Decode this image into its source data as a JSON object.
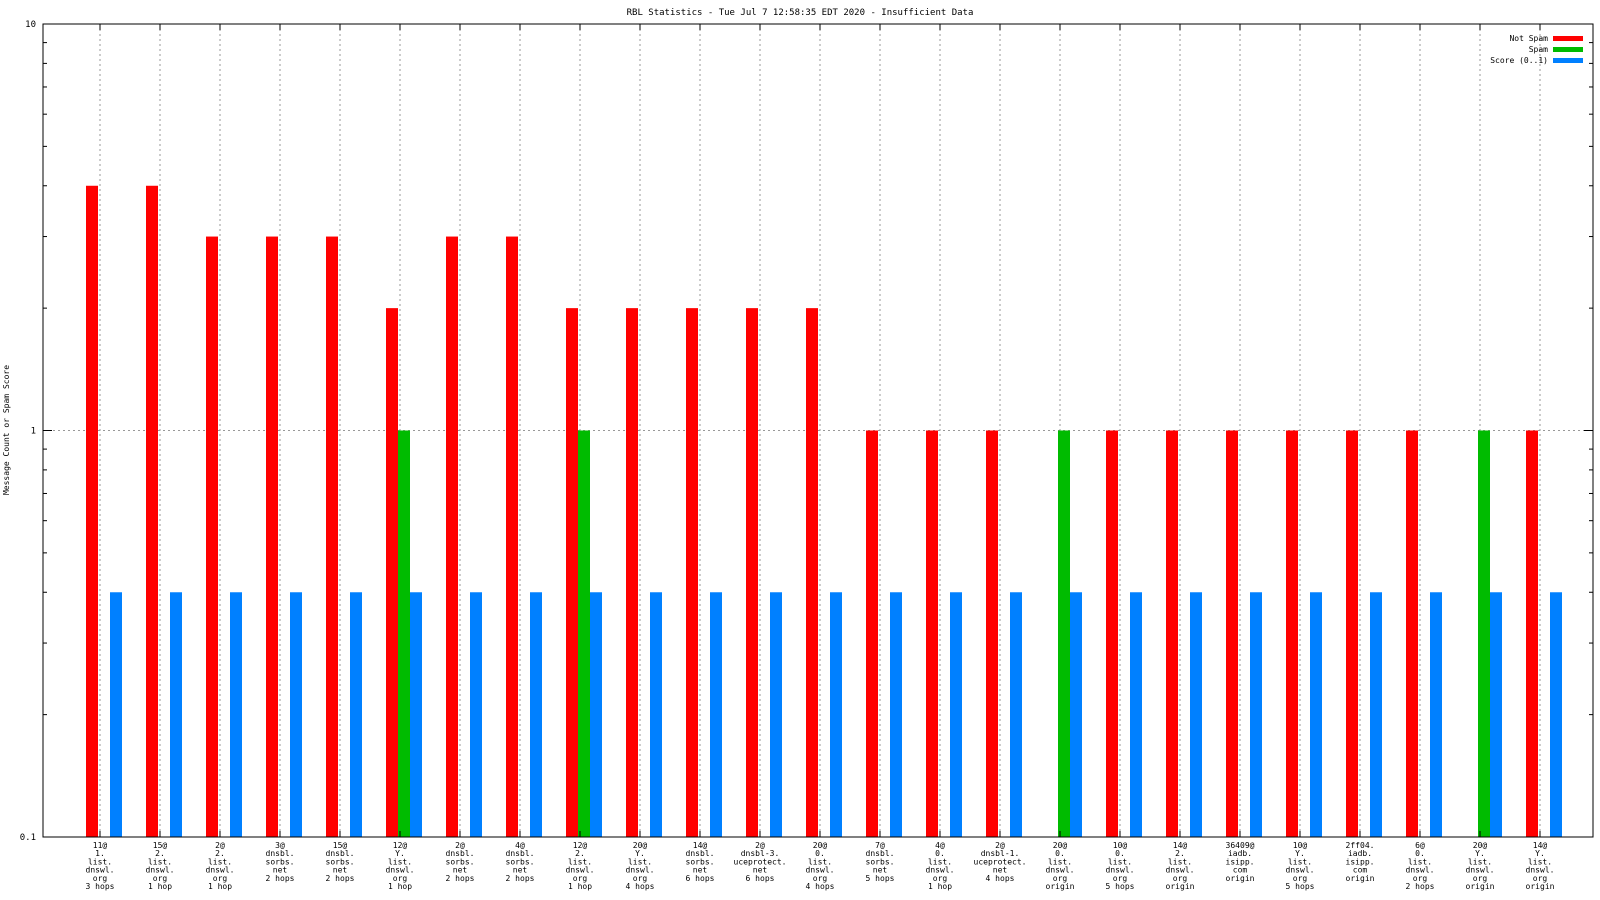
{
  "chart_data": {
    "type": "bar",
    "title": "RBL Statistics - Tue Jul  7 12:58:35 EDT 2020 - Insufficient Data",
    "xlabel": "",
    "ylabel": "Message Count or Spam Score",
    "yscale": "log",
    "ylim": [
      0.1,
      10
    ],
    "yticks": [
      "10",
      "1",
      "0.1"
    ],
    "grid": true,
    "legend_position": "top-right",
    "categories": [
      [
        "11@",
        "1.",
        "list.",
        "dnswl.",
        "org",
        "3 hops"
      ],
      [
        "15@",
        "2.",
        "list.",
        "dnswl.",
        "org",
        "1 hop"
      ],
      [
        "2@",
        "2.",
        "list.",
        "dnswl.",
        "org",
        "1 hop"
      ],
      [
        "3@",
        "dnsbl.",
        "sorbs.",
        "net",
        "2 hops"
      ],
      [
        "15@",
        "dnsbl.",
        "sorbs.",
        "net",
        "2 hops"
      ],
      [
        "12@",
        "Y.",
        "list.",
        "dnswl.",
        "org",
        "1 hop"
      ],
      [
        "2@",
        "dnsbl.",
        "sorbs.",
        "net",
        "2 hops"
      ],
      [
        "4@",
        "dnsbl.",
        "sorbs.",
        "net",
        "2 hops"
      ],
      [
        "12@",
        "2.",
        "list.",
        "dnswl.",
        "org",
        "1 hop"
      ],
      [
        "20@",
        "Y.",
        "list.",
        "dnswl.",
        "org",
        "4 hops"
      ],
      [
        "14@",
        "dnsbl.",
        "sorbs.",
        "net",
        "6 hops"
      ],
      [
        "2@",
        "dnsbl-3.",
        "uceprotect.",
        "net",
        "6 hops"
      ],
      [
        "20@",
        "0.",
        "list.",
        "dnswl.",
        "org",
        "4 hops"
      ],
      [
        "7@",
        "dnsbl.",
        "sorbs.",
        "net",
        "5 hops"
      ],
      [
        "4@",
        "0.",
        "list.",
        "dnswl.",
        "org",
        "1 hop"
      ],
      [
        "2@",
        "dnsbl-1.",
        "uceprotect.",
        "net",
        "4 hops"
      ],
      [
        "20@",
        "0.",
        "list.",
        "dnswl.",
        "org",
        "origin"
      ],
      [
        "10@",
        "0.",
        "list.",
        "dnswl.",
        "org",
        "5 hops"
      ],
      [
        "14@",
        "2.",
        "list.",
        "dnswl.",
        "org",
        "origin"
      ],
      [
        "36409@",
        "iadb.",
        "isipp.",
        "com",
        "origin"
      ],
      [
        "10@",
        "Y.",
        "list.",
        "dnswl.",
        "org",
        "5 hops"
      ],
      [
        "2ff04.",
        "iadb.",
        "isipp.",
        "com",
        "origin"
      ],
      [
        "6@",
        "0.",
        "list.",
        "dnswl.",
        "org",
        "2 hops"
      ],
      [
        "20@",
        "Y.",
        "list.",
        "dnswl.",
        "org",
        "origin"
      ],
      [
        "14@",
        "Y.",
        "list.",
        "dnswl.",
        "org",
        "origin"
      ]
    ],
    "series": [
      {
        "name": "Not Spam",
        "color": "#ff0000",
        "values": [
          4,
          4,
          3,
          3,
          3,
          2,
          3,
          3,
          2,
          2,
          2,
          2,
          2,
          1,
          1,
          1,
          null,
          1,
          1,
          1,
          1,
          1,
          1,
          null,
          1
        ]
      },
      {
        "name": "Spam",
        "color": "#00bb00",
        "values": [
          null,
          null,
          null,
          null,
          null,
          1,
          null,
          null,
          1,
          null,
          null,
          null,
          null,
          null,
          null,
          null,
          1,
          null,
          null,
          null,
          null,
          null,
          null,
          1,
          null
        ]
      },
      {
        "name": "Score (0..1)",
        "color": "#0080ff",
        "values": [
          0.4,
          0.4,
          0.4,
          0.4,
          0.4,
          0.4,
          0.4,
          0.4,
          0.4,
          0.4,
          0.4,
          0.4,
          0.4,
          0.4,
          0.4,
          0.4,
          0.4,
          0.4,
          0.4,
          0.4,
          0.4,
          0.4,
          0.4,
          0.4,
          0.4
        ]
      }
    ]
  }
}
